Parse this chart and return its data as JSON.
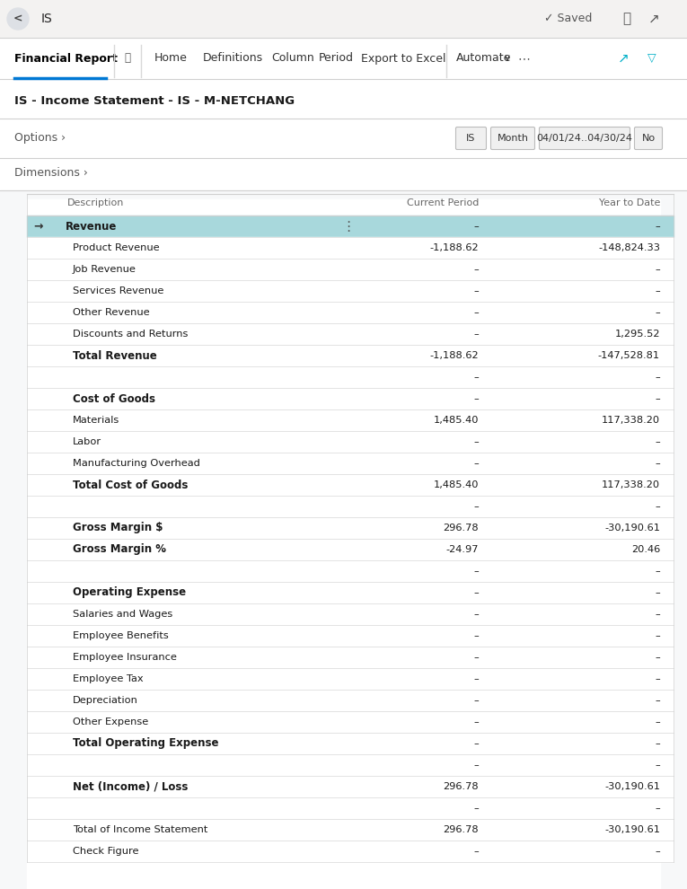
{
  "title_bar": "IS",
  "saved_text": "✓ Saved",
  "report_title": "IS - Income Statement - IS - M-NETCHANG",
  "options_label": "Options ›",
  "filter_pills": [
    "IS",
    "Month",
    "04/01/24..04/30/24",
    "No"
  ],
  "dimensions_label": "Dimensions ›",
  "col_headers": [
    "Description",
    "Current Period",
    "Year to Date"
  ],
  "rows": [
    {
      "label": "Revenue",
      "bold": true,
      "highlight": true,
      "indent": 0,
      "cp": "–",
      "ytd": "–",
      "arrow": true
    },
    {
      "label": "Product Revenue",
      "bold": false,
      "highlight": false,
      "indent": 1,
      "cp": "-1,188.62",
      "ytd": "-148,824.33"
    },
    {
      "label": "Job Revenue",
      "bold": false,
      "highlight": false,
      "indent": 1,
      "cp": "–",
      "ytd": "–"
    },
    {
      "label": "Services Revenue",
      "bold": false,
      "highlight": false,
      "indent": 1,
      "cp": "–",
      "ytd": "–"
    },
    {
      "label": "Other Revenue",
      "bold": false,
      "highlight": false,
      "indent": 1,
      "cp": "–",
      "ytd": "–"
    },
    {
      "label": "Discounts and Returns",
      "bold": false,
      "highlight": false,
      "indent": 1,
      "cp": "–",
      "ytd": "1,295.52"
    },
    {
      "label": "Total Revenue",
      "bold": true,
      "highlight": false,
      "indent": 1,
      "cp": "-1,188.62",
      "ytd": "-147,528.81"
    },
    {
      "label": "",
      "bold": false,
      "highlight": false,
      "indent": 0,
      "cp": "–",
      "ytd": "–",
      "spacer": true
    },
    {
      "label": "Cost of Goods",
      "bold": true,
      "highlight": false,
      "indent": 1,
      "cp": "–",
      "ytd": "–"
    },
    {
      "label": "Materials",
      "bold": false,
      "highlight": false,
      "indent": 1,
      "cp": "1,485.40",
      "ytd": "117,338.20"
    },
    {
      "label": "Labor",
      "bold": false,
      "highlight": false,
      "indent": 1,
      "cp": "–",
      "ytd": "–"
    },
    {
      "label": "Manufacturing Overhead",
      "bold": false,
      "highlight": false,
      "indent": 1,
      "cp": "–",
      "ytd": "–"
    },
    {
      "label": "Total Cost of Goods",
      "bold": true,
      "highlight": false,
      "indent": 1,
      "cp": "1,485.40",
      "ytd": "117,338.20"
    },
    {
      "label": "",
      "bold": false,
      "highlight": false,
      "indent": 0,
      "cp": "–",
      "ytd": "–",
      "spacer": true
    },
    {
      "label": "Gross Margin $",
      "bold": true,
      "highlight": false,
      "indent": 1,
      "cp": "296.78",
      "ytd": "-30,190.61"
    },
    {
      "label": "Gross Margin %",
      "bold": true,
      "highlight": false,
      "indent": 1,
      "cp": "-24.97",
      "ytd": "20.46"
    },
    {
      "label": "",
      "bold": false,
      "highlight": false,
      "indent": 0,
      "cp": "–",
      "ytd": "–",
      "spacer": true
    },
    {
      "label": "Operating Expense",
      "bold": true,
      "highlight": false,
      "indent": 1,
      "cp": "–",
      "ytd": "–"
    },
    {
      "label": "Salaries and Wages",
      "bold": false,
      "highlight": false,
      "indent": 1,
      "cp": "–",
      "ytd": "–"
    },
    {
      "label": "Employee Benefits",
      "bold": false,
      "highlight": false,
      "indent": 1,
      "cp": "–",
      "ytd": "–"
    },
    {
      "label": "Employee Insurance",
      "bold": false,
      "highlight": false,
      "indent": 1,
      "cp": "–",
      "ytd": "–"
    },
    {
      "label": "Employee Tax",
      "bold": false,
      "highlight": false,
      "indent": 1,
      "cp": "–",
      "ytd": "–"
    },
    {
      "label": "Depreciation",
      "bold": false,
      "highlight": false,
      "indent": 1,
      "cp": "–",
      "ytd": "–"
    },
    {
      "label": "Other Expense",
      "bold": false,
      "highlight": false,
      "indent": 1,
      "cp": "–",
      "ytd": "–"
    },
    {
      "label": "Total Operating Expense",
      "bold": true,
      "highlight": false,
      "indent": 1,
      "cp": "–",
      "ytd": "–"
    },
    {
      "label": "",
      "bold": false,
      "highlight": false,
      "indent": 0,
      "cp": "–",
      "ytd": "–",
      "spacer": true
    },
    {
      "label": "Net (Income) / Loss",
      "bold": true,
      "highlight": false,
      "indent": 1,
      "cp": "296.78",
      "ytd": "-30,190.61"
    },
    {
      "label": "",
      "bold": false,
      "highlight": false,
      "indent": 0,
      "cp": "–",
      "ytd": "–",
      "spacer": true
    },
    {
      "label": "Total of Income Statement",
      "bold": false,
      "highlight": false,
      "indent": 1,
      "cp": "296.78",
      "ytd": "-30,190.61"
    },
    {
      "label": "Check Figure",
      "bold": false,
      "highlight": false,
      "indent": 1,
      "cp": "–",
      "ytd": "–"
    }
  ],
  "bg_color": "#ffffff",
  "highlight_row_color": "#a8d8dc",
  "border_color": "#d0d0d0",
  "text_color": "#1a1a1a",
  "col_header_text": "#666666",
  "nav_underline_color": "#0078d4",
  "pill_bg": "#f0f0f0",
  "top_bar_bg": "#f3f2f1",
  "teal_icon_color": "#00b0c8"
}
